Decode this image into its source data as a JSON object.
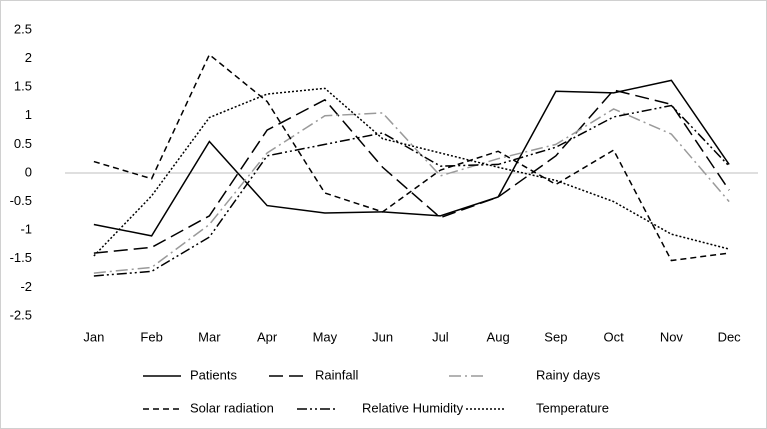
{
  "chart_data": {
    "type": "line",
    "categories": [
      "Jan",
      "Feb",
      "Mar",
      "Apr",
      "May",
      "Jun",
      "Jul",
      "Aug",
      "Sep",
      "Oct",
      "Nov",
      "Dec"
    ],
    "series": [
      {
        "name": "Patients",
        "color": "#000000",
        "dash": "solid",
        "values": [
          -0.9,
          -1.1,
          0.55,
          -0.57,
          -0.7,
          -0.68,
          -0.75,
          -0.42,
          1.43,
          1.4,
          1.62,
          0.15
        ]
      },
      {
        "name": "Rainfall",
        "color": "#000000",
        "dash": "long-dash",
        "values": [
          -1.4,
          -1.3,
          -0.75,
          0.75,
          1.28,
          0.1,
          -0.78,
          -0.42,
          0.3,
          1.45,
          1.2,
          -0.3
        ]
      },
      {
        "name": "Rainy days",
        "color": "#9a9a9a",
        "dash": "dash-dot",
        "values": [
          -1.75,
          -1.65,
          -0.9,
          0.35,
          1.0,
          1.05,
          -0.05,
          0.25,
          0.5,
          1.12,
          0.68,
          -0.5
        ]
      },
      {
        "name": "Solar radiation",
        "color": "#000000",
        "dash": "dash",
        "values": [
          0.2,
          -0.1,
          2.07,
          1.25,
          -0.35,
          -0.68,
          0.05,
          0.38,
          -0.2,
          0.4,
          -1.53,
          -1.4
        ]
      },
      {
        "name": "Relative Humidity",
        "color": "#000000",
        "dash": "dash-dot-dot",
        "values": [
          -1.8,
          -1.72,
          -1.12,
          0.3,
          0.5,
          0.7,
          0.12,
          0.15,
          0.45,
          0.98,
          1.18,
          0.12
        ]
      },
      {
        "name": "Temperature",
        "color": "#000000",
        "dash": "dot",
        "values": [
          -1.45,
          -0.4,
          0.97,
          1.38,
          1.48,
          0.6,
          0.35,
          0.1,
          -0.13,
          -0.5,
          -1.07,
          -1.33
        ]
      }
    ],
    "ylim": [
      -2.5,
      2.5
    ],
    "yticks": [
      -2.5,
      -2,
      -1.5,
      -1,
      -0.5,
      0,
      0.5,
      1,
      1.5,
      2,
      2.5
    ],
    "grid": false,
    "legend": "bottom"
  }
}
